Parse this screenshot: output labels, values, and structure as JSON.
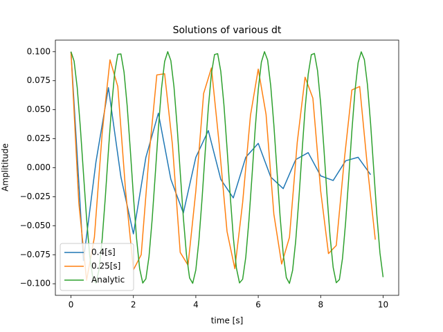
{
  "chart_data": {
    "type": "line",
    "title": "Solutions of various dt",
    "xlabel": "time [s]",
    "ylabel": "Amplititude",
    "xlim": [
      -0.5,
      10.5
    ],
    "ylim": [
      -0.11,
      0.11
    ],
    "xticks": [
      0,
      2,
      4,
      6,
      8,
      10
    ],
    "yticks": [
      {
        "value": -0.1,
        "label": "−0.100"
      },
      {
        "value": -0.075,
        "label": "−0.075"
      },
      {
        "value": -0.05,
        "label": "−0.050"
      },
      {
        "value": -0.025,
        "label": "−0.025"
      },
      {
        "value": 0,
        "label": "0.000"
      },
      {
        "value": 0.025,
        "label": "0.025"
      },
      {
        "value": 0.05,
        "label": "0.050"
      },
      {
        "value": 0.075,
        "label": "0.075"
      },
      {
        "value": 0.1,
        "label": "0.100"
      }
    ],
    "legend": "lower left",
    "series": [
      {
        "name": "0.4[s]",
        "color": "#1f77b4",
        "x": [
          0,
          0.4,
          0.8,
          1.2,
          1.6,
          2.0,
          2.4,
          2.8,
          3.2,
          3.6,
          4.0,
          4.4,
          4.8,
          5.2,
          5.6,
          6.0,
          6.4,
          6.8,
          7.2,
          7.6,
          8.0,
          8.4,
          8.8,
          9.2,
          9.6
        ],
        "values": [
          0.1,
          -0.08,
          0.005,
          0.069,
          -0.008,
          -0.057,
          0.009,
          0.047,
          -0.01,
          -0.039,
          0.009,
          0.032,
          -0.01,
          -0.026,
          0.009,
          0.021,
          -0.008,
          -0.018,
          0.007,
          0.013,
          -0.007,
          -0.011,
          0.006,
          0.009,
          -0.006
        ]
      },
      {
        "name": "0.25[s]",
        "color": "#ff7f0e",
        "x": [
          0,
          0.25,
          0.5,
          0.75,
          1.0,
          1.25,
          1.5,
          1.75,
          2.0,
          2.25,
          2.5,
          2.75,
          3.0,
          3.25,
          3.5,
          3.75,
          4.0,
          4.25,
          4.5,
          4.75,
          5.0,
          5.25,
          5.5,
          5.75,
          6.0,
          6.25,
          6.5,
          6.75,
          7.0,
          7.25,
          7.5,
          7.75,
          8.0,
          8.25,
          8.5,
          8.75,
          9.0,
          9.25,
          9.5,
          9.75
        ],
        "values": [
          0.1,
          -0.03,
          -0.097,
          -0.06,
          0.03,
          0.093,
          0.07,
          -0.02,
          -0.088,
          -0.075,
          0.01,
          0.08,
          0.081,
          0.02,
          -0.073,
          -0.084,
          -0.02,
          0.064,
          0.086,
          0.02,
          -0.055,
          -0.087,
          -0.03,
          0.045,
          0.085,
          0.046,
          -0.04,
          -0.083,
          -0.06,
          0.022,
          0.078,
          0.06,
          -0.02,
          -0.074,
          -0.067,
          0.005,
          0.067,
          0.07,
          0.0,
          -0.062
        ]
      },
      {
        "name": "Analytic",
        "color": "#2ca02c",
        "x": [
          0,
          0.1,
          0.2,
          0.3,
          0.4,
          0.5,
          0.6,
          0.7,
          0.8,
          0.9,
          1,
          1.1,
          1.2,
          1.3,
          1.4,
          1.5,
          1.6,
          1.7,
          1.8,
          1.9,
          2,
          2.1,
          2.2,
          2.3,
          2.4,
          2.5,
          2.6,
          2.7,
          2.8,
          2.9,
          3,
          3.1,
          3.2,
          3.3,
          3.4,
          3.5,
          3.6,
          3.7,
          3.8,
          3.9,
          4,
          4.1,
          4.2,
          4.3,
          4.4,
          4.5,
          4.6,
          4.7,
          4.8,
          4.9,
          5,
          5.1,
          5.2,
          5.3,
          5.4,
          5.5,
          5.6,
          5.7,
          5.8,
          5.9,
          6,
          6.1,
          6.2,
          6.3,
          6.4,
          6.5,
          6.6,
          6.7,
          6.8,
          6.9,
          7,
          7.1,
          7.2,
          7.3,
          7.4,
          7.5,
          7.6,
          7.7,
          7.8,
          7.9,
          8,
          8.1,
          8.2,
          8.3,
          8.4,
          8.5,
          8.6,
          8.7,
          8.8,
          8.9,
          9,
          9.1,
          9.2,
          9.3,
          9.4,
          9.5,
          9.6,
          9.7,
          9.8,
          9.9,
          10
        ],
        "values": [
          0.1,
          0.0919,
          0.069,
          0.0348,
          -0.0049,
          -0.0439,
          -0.0757,
          -0.0953,
          -0.0995,
          -0.0876,
          -0.0614,
          -0.0255,
          0.0146,
          0.0525,
          0.0818,
          0.0978,
          0.0981,
          0.0824,
          0.0535,
          0.0158,
          -0.0244,
          -0.0606,
          -0.087,
          -0.0994,
          -0.0957,
          -0.0766,
          -0.0448,
          -0.0061,
          0.0337,
          0.0682,
          0.0915,
          0.1,
          0.0923,
          0.0697,
          0.0359,
          -0.0038,
          -0.0429,
          -0.075,
          -0.095,
          -0.0996,
          -0.0881,
          -0.0623,
          -0.0266,
          0.0135,
          0.0515,
          0.0812,
          0.0976,
          0.0983,
          0.083,
          0.0544,
          0.0169,
          -0.0233,
          -0.0597,
          -0.0865,
          -0.0993,
          -0.0961,
          -0.0773,
          -0.0458,
          -0.0072,
          0.0327,
          0.0673,
          0.091,
          0.1,
          0.0928,
          0.0705,
          0.0369,
          -0.0027,
          -0.0419,
          -0.0743,
          -0.0947,
          -0.0997,
          -0.0886,
          -0.0632,
          -0.0276,
          0.0125,
          0.0506,
          0.0805,
          0.0974,
          0.0985,
          0.0836,
          0.0553,
          0.018,
          -0.0222,
          -0.0589,
          -0.0859,
          -0.0991,
          -0.0964,
          -0.078,
          -0.0468,
          -0.0083,
          0.0317,
          0.0664,
          0.0906,
          0.0999,
          0.0932,
          0.0713,
          0.0379,
          -0.0016,
          -0.0409,
          -0.0736,
          -0.0943
        ]
      }
    ]
  }
}
